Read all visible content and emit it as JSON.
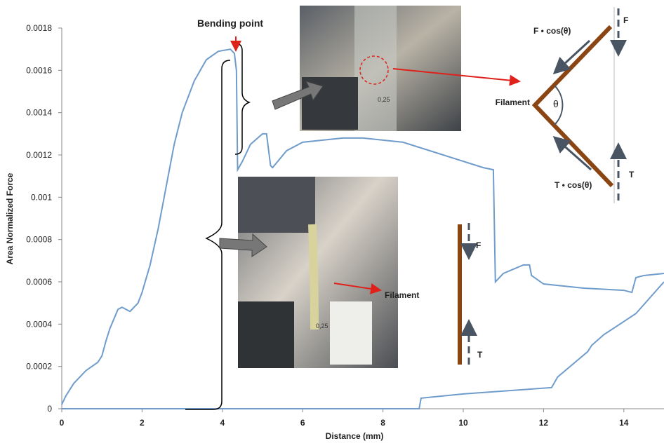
{
  "chart_data": {
    "type": "line",
    "xlabel": "Distance (mm)",
    "ylabel": "Area Normalized Force",
    "xlim": [
      0,
      15
    ],
    "xticks": [
      0,
      2,
      4,
      6,
      8,
      10,
      12,
      14
    ],
    "ylim": [
      0,
      0.0018
    ],
    "yticks": [
      0,
      0.0002,
      0.0004,
      0.0006,
      0.0008,
      0.001,
      0.0012,
      0.0014,
      0.0016,
      0.0018
    ],
    "series": [
      {
        "color": "#6f9ccb",
        "x": [
          0,
          0.1,
          0.3,
          0.6,
          0.9,
          1.0,
          1.1,
          1.2,
          1.4,
          1.5,
          1.7,
          1.9,
          2.0,
          2.2,
          2.4,
          2.6,
          2.8,
          3.0,
          3.3,
          3.6,
          3.9,
          4.2,
          4.3,
          4.35,
          4.38,
          4.5,
          4.7,
          5.0,
          5.1,
          5.2,
          5.25,
          5.6,
          6.0,
          7.0,
          7.5,
          8.5,
          9.5,
          10.5,
          10.75,
          10.8,
          11.0,
          11.5,
          11.65,
          11.7,
          12.0,
          13.0,
          14.0,
          14.2,
          14.3,
          14.5,
          15
        ],
        "values": [
          2e-05,
          6e-05,
          0.00012,
          0.00018,
          0.00022,
          0.00025,
          0.00032,
          0.00038,
          0.00047,
          0.00048,
          0.00046,
          0.0005,
          0.00055,
          0.00068,
          0.00085,
          0.00105,
          0.00125,
          0.0014,
          0.00155,
          0.00165,
          0.00169,
          0.0017,
          0.00168,
          0.0016,
          0.00113,
          0.00117,
          0.00125,
          0.0013,
          0.0013,
          0.00115,
          0.00114,
          0.00122,
          0.00126,
          0.00128,
          0.00128,
          0.00126,
          0.0012,
          0.00114,
          0.00113,
          0.0006,
          0.00064,
          0.00068,
          0.00068,
          0.00063,
          0.00059,
          0.00057,
          0.00056,
          0.00055,
          0.00062,
          0.00063,
          0.00064
        ]
      },
      {
        "color": "#6f9ccb",
        "x": [
          0,
          4,
          8.9,
          8.95,
          10,
          12.2,
          12.35,
          13.1,
          13.2,
          13.5,
          14.3,
          15
        ],
        "values": [
          0,
          0,
          0,
          5e-05,
          7e-05,
          0.0001,
          0.00015,
          0.00027,
          0.0003,
          0.00035,
          0.00045,
          0.0006
        ]
      }
    ],
    "annotations": [
      "Bending point",
      "F • cos(θ)",
      "Filament",
      "θ",
      "F",
      "T",
      "T • cos(θ)",
      "F",
      "Filament",
      "T",
      "0,25",
      "0,25"
    ]
  }
}
